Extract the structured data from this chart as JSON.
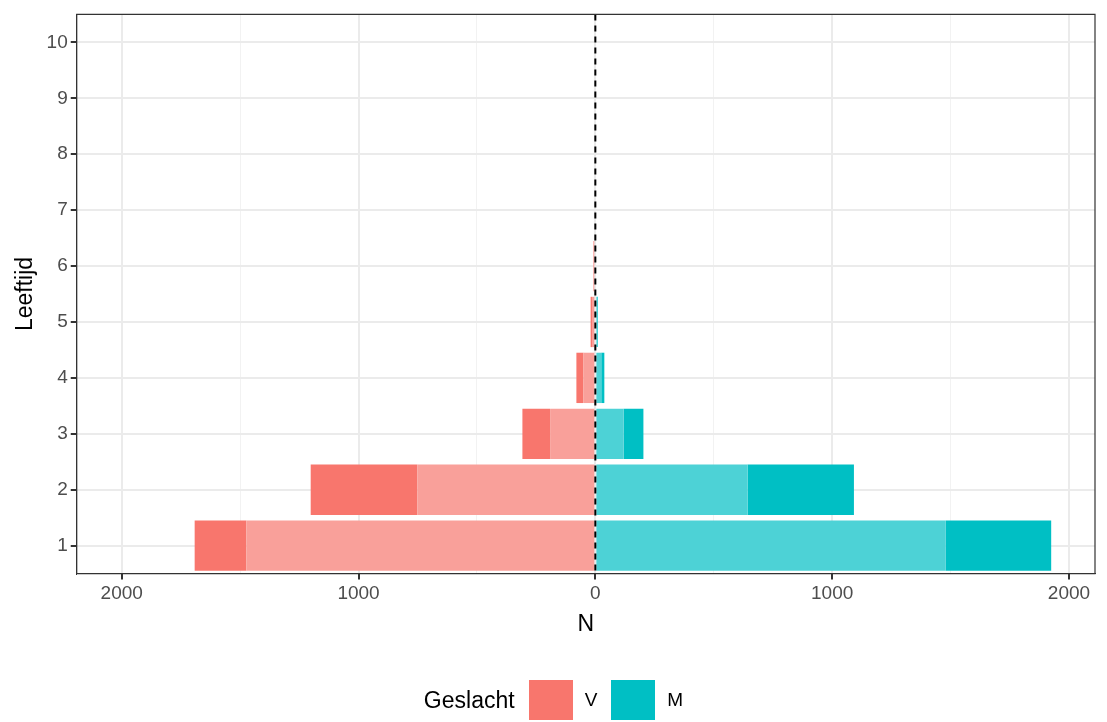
{
  "chart_data": {
    "type": "bar",
    "orientation": "horizontal",
    "stacked": true,
    "xlabel": "N",
    "ylabel": "Leeftijd",
    "legend_title": "Geslacht",
    "legend": "bottom",
    "grid": true,
    "categories": [
      "10",
      "9",
      "8",
      "7",
      "6",
      "5",
      "4",
      "3",
      "2",
      "1"
    ],
    "series": [
      {
        "color": "#f9a09a",
        "values": [
          0,
          0,
          0,
          0,
          -6,
          -14,
          -50,
          -191,
          -752,
          -1474
        ]
      },
      {
        "name": "V",
        "color": "#f8766d",
        "values": [
          0,
          0,
          0,
          0,
          -2,
          -6,
          -30,
          -117,
          -450,
          -218
        ]
      },
      {
        "color": "#4dd2d6",
        "values": [
          0,
          0,
          0,
          0,
          0,
          8,
          25,
          120,
          643,
          1480
        ]
      },
      {
        "name": "M",
        "color": "#00bfc4",
        "values": [
          0,
          0,
          0,
          0,
          0,
          3,
          13,
          83,
          449,
          445
        ]
      }
    ],
    "xlim": [
      -2190,
      2110
    ],
    "xticks": [
      {
        "value": -2000,
        "label": "2000"
      },
      {
        "value": -1500,
        "label": null
      },
      {
        "value": -1000,
        "label": "1000"
      },
      {
        "value": -500,
        "label": null
      },
      0,
      {
        "value": 500,
        "label": null
      },
      1000,
      {
        "value": 1500,
        "label": null
      },
      2000
    ],
    "ref_lines": [
      {
        "axis": "x",
        "value": 0,
        "color": "#000000",
        "line_style": "dashed"
      }
    ]
  }
}
